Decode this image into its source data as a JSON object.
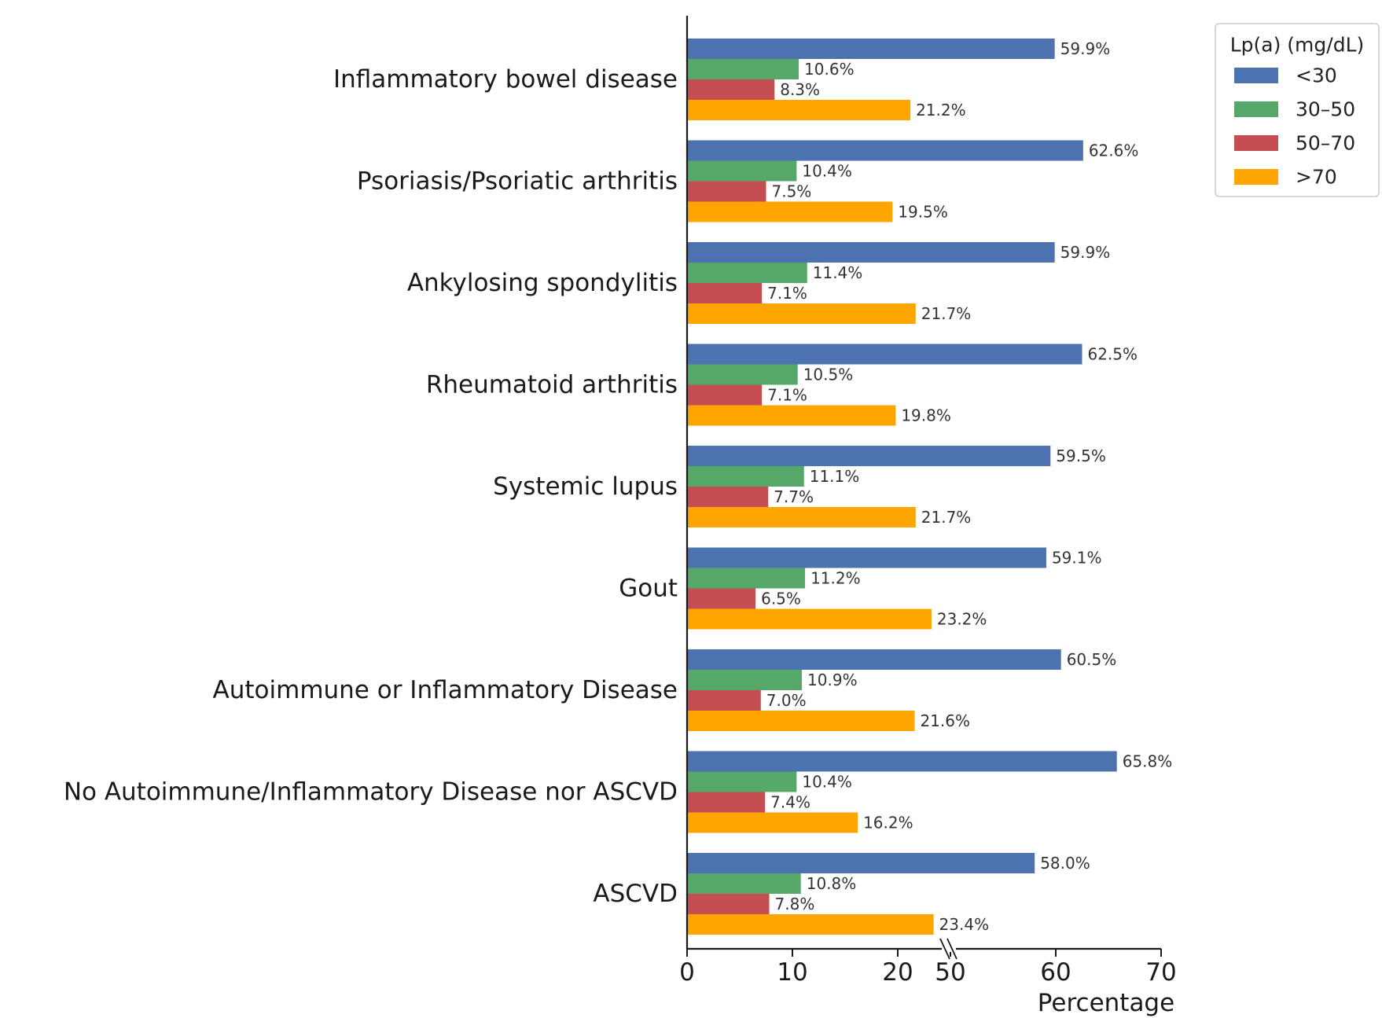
{
  "chart_data": {
    "type": "bar",
    "orientation": "horizontal",
    "title": "",
    "xlabel": "Percentage",
    "ylabel": "",
    "xlim": [
      0,
      70
    ],
    "x_axis_break": {
      "from": 25,
      "to": 50
    },
    "x_ticks": [
      0,
      10,
      20,
      50,
      60,
      70
    ],
    "categories": [
      "Inflammatory bowel disease",
      "Psoriasis/Psoriatic arthritis",
      "Ankylosing spondylitis",
      "Rheumatoid arthritis",
      "Systemic lupus",
      "Gout",
      "Autoimmune or Inflammatory Disease",
      "No Autoimmune/Inflammatory Disease nor ASCVD",
      "ASCVD"
    ],
    "series": [
      {
        "name": "<30",
        "color": "#4c72b0",
        "values": [
          59.9,
          62.6,
          59.9,
          62.5,
          59.5,
          59.1,
          60.5,
          65.8,
          58.0
        ]
      },
      {
        "name": "30–50",
        "color": "#55a868",
        "values": [
          10.6,
          10.4,
          11.4,
          10.5,
          11.1,
          11.2,
          10.9,
          10.4,
          10.8
        ]
      },
      {
        "name": "50–70",
        "color": "#c44e52",
        "values": [
          8.3,
          7.5,
          7.1,
          7.1,
          7.7,
          6.5,
          7.0,
          7.4,
          7.8
        ]
      },
      {
        "name": ">70",
        "color": "#ffa500",
        "values": [
          21.2,
          19.5,
          21.7,
          19.8,
          21.7,
          23.2,
          21.6,
          16.2,
          23.4
        ]
      }
    ],
    "legend": {
      "title": "Lp(a) (mg/dL)",
      "position": "top-right"
    },
    "grid": false,
    "value_suffix": "%"
  }
}
